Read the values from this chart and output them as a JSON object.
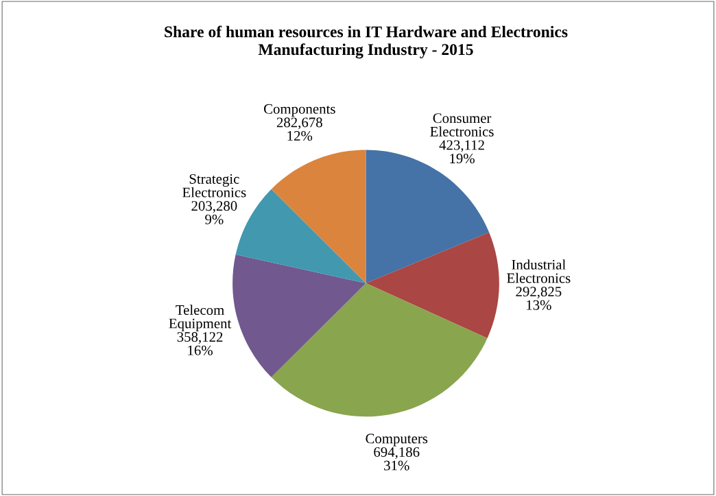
{
  "chart_data": {
    "type": "pie",
    "title": "Share of human resources in IT Hardware and Electronics\nManufacturing Industry - 2015",
    "categories": [
      "Consumer Electronics",
      "Industrial Electronics",
      "Computers",
      "Telecom Equipment",
      "Strategic Electronics",
      "Components"
    ],
    "values": [
      423112,
      292825,
      694186,
      358122,
      203280,
      282678
    ],
    "colors": [
      "#4572a7",
      "#aa4643",
      "#89a54e",
      "#71588f",
      "#4198af",
      "#db843d"
    ],
    "value_labels": [
      "423,112\n19%",
      "292,825\n13%",
      "694,186\n31%",
      "358,122\n16%",
      "203,280\n9%",
      "282,678\n12%"
    ],
    "legend": false
  }
}
